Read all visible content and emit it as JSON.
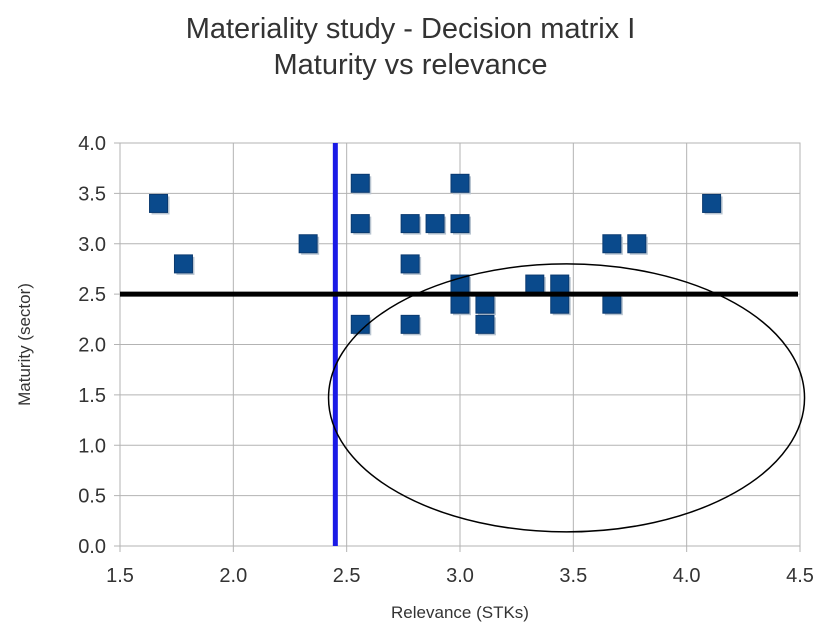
{
  "chart_data": {
    "type": "scatter",
    "title": "Materiality study - Decision matrix I",
    "subtitle": "Maturity vs relevance",
    "xlabel": "Relevance (STKs)",
    "ylabel": "Maturity (sector)",
    "xlim": [
      1.5,
      4.5
    ],
    "ylim": [
      0.0,
      4.0
    ],
    "x_ticks": [
      "1.5",
      "2.0",
      "2.5",
      "3.0",
      "3.5",
      "4.0",
      "4.5"
    ],
    "y_ticks": [
      "0.0",
      "0.5",
      "1.0",
      "1.5",
      "2.0",
      "2.5",
      "3.0",
      "3.5",
      "4.0"
    ],
    "grid": true,
    "marker_color": "#0a4a8c",
    "series": [
      {
        "points": [
          {
            "x": 1.67,
            "y": 3.4
          },
          {
            "x": 1.78,
            "y": 2.8
          },
          {
            "x": 2.33,
            "y": 3.0
          },
          {
            "x": 2.56,
            "y": 3.6
          },
          {
            "x": 2.56,
            "y": 3.2
          },
          {
            "x": 2.56,
            "y": 2.2
          },
          {
            "x": 2.78,
            "y": 3.2
          },
          {
            "x": 2.78,
            "y": 2.8
          },
          {
            "x": 2.78,
            "y": 2.2
          },
          {
            "x": 2.89,
            "y": 3.2
          },
          {
            "x": 3.0,
            "y": 3.6
          },
          {
            "x": 3.0,
            "y": 3.2
          },
          {
            "x": 3.0,
            "y": 2.6
          },
          {
            "x": 3.0,
            "y": 2.4
          },
          {
            "x": 3.11,
            "y": 2.4
          },
          {
            "x": 3.11,
            "y": 2.2
          },
          {
            "x": 3.33,
            "y": 2.6
          },
          {
            "x": 3.44,
            "y": 2.6
          },
          {
            "x": 3.44,
            "y": 2.4
          },
          {
            "x": 3.67,
            "y": 3.0
          },
          {
            "x": 3.67,
            "y": 2.4
          },
          {
            "x": 3.78,
            "y": 3.0
          },
          {
            "x": 4.11,
            "y": 3.4
          }
        ]
      }
    ],
    "annotations": {
      "vertical_line": {
        "x": 2.45,
        "color": "#1a1ae6"
      },
      "horizontal_line": {
        "y": 2.5,
        "color": "#000000"
      },
      "ellipse": {
        "cx": 3.47,
        "cy": 1.47,
        "rx": 1.05,
        "ry": 1.33,
        "color": "#000000"
      }
    }
  }
}
